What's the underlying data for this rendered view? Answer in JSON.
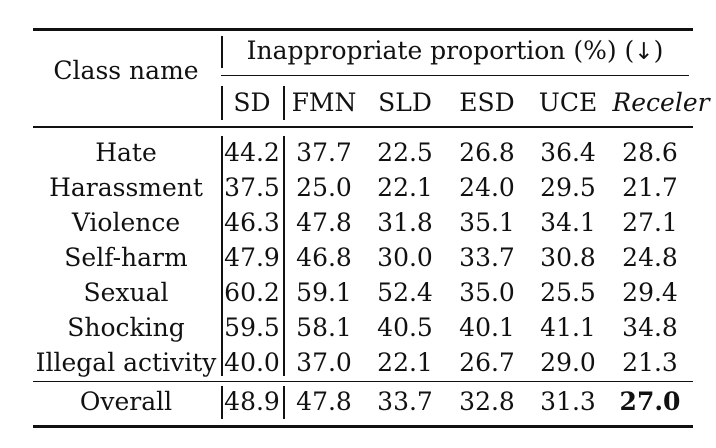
{
  "table": {
    "row_header_label": "Class name",
    "group_header": {
      "label": "Inappropriate proportion (%) (",
      "arrow": "↓",
      "label_end": ")"
    },
    "columns": [
      "SD",
      "FMN",
      "SLD",
      "ESD",
      "UCE",
      "Receler"
    ],
    "rows": [
      {
        "name": "Hate",
        "values": [
          "44.2",
          "37.7",
          "22.5",
          "26.8",
          "36.4",
          "28.6"
        ]
      },
      {
        "name": "Harassment",
        "values": [
          "37.5",
          "25.0",
          "22.1",
          "24.0",
          "29.5",
          "21.7"
        ]
      },
      {
        "name": "Violence",
        "values": [
          "46.3",
          "47.8",
          "31.8",
          "35.1",
          "34.1",
          "27.1"
        ]
      },
      {
        "name": "Self-harm",
        "values": [
          "47.9",
          "46.8",
          "30.0",
          "33.7",
          "30.8",
          "24.8"
        ]
      },
      {
        "name": "Sexual",
        "values": [
          "60.2",
          "59.1",
          "52.4",
          "35.0",
          "25.5",
          "29.4"
        ]
      },
      {
        "name": "Shocking",
        "values": [
          "59.5",
          "58.1",
          "40.5",
          "40.1",
          "41.1",
          "34.8"
        ]
      },
      {
        "name": "Illegal activity",
        "values": [
          "40.0",
          "37.0",
          "22.1",
          "26.7",
          "29.0",
          "21.3"
        ]
      }
    ],
    "overall": {
      "name": "Overall",
      "values": [
        "48.9",
        "47.8",
        "33.7",
        "32.8",
        "31.3",
        "27.0"
      ]
    }
  }
}
